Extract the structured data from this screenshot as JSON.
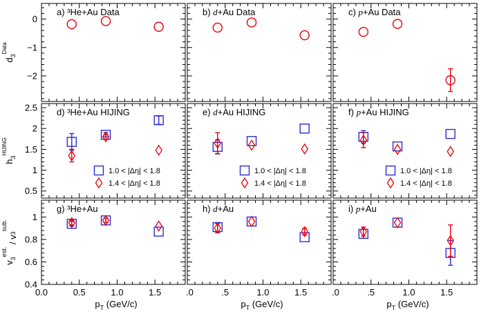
{
  "colors": {
    "series_red": "#e8000b",
    "series_blue": "#2b2bd6"
  },
  "chart_data": {
    "type": "scatter",
    "xlabel": "p_T (GeV/c)",
    "xlim": [
      0.0,
      1.9
    ],
    "x_ticks": [
      "0.0",
      "0.5",
      "1.0",
      "1.5"
    ],
    "x_ticks_right": [
      ".0",
      ".5",
      "1.0",
      "1.5"
    ],
    "rows": [
      {
        "ylabel": "d_3^Data",
        "ylim": [
          -2.9,
          0.55
        ],
        "y_ticks": [
          0,
          -1,
          -2
        ],
        "y_tick_labels": [
          "0",
          "−1",
          "−2"
        ],
        "panels": [
          {
            "label": "a) ³He+Au Data",
            "series": [
              {
                "name": "Data",
                "marker": "circle",
                "color": "#e8000b",
                "points": [
                  {
                    "x": 0.4,
                    "y": -0.18,
                    "err": 0.0
                  },
                  {
                    "x": 0.85,
                    "y": -0.07,
                    "err": 0.0
                  },
                  {
                    "x": 1.55,
                    "y": -0.27,
                    "err": 0.0
                  }
                ]
              }
            ]
          },
          {
            "label": "b) d+Au Data",
            "series": [
              {
                "name": "Data",
                "marker": "circle",
                "color": "#e8000b",
                "points": [
                  {
                    "x": 0.4,
                    "y": -0.3,
                    "err": 0.0
                  },
                  {
                    "x": 0.85,
                    "y": -0.12,
                    "err": 0.0
                  },
                  {
                    "x": 1.55,
                    "y": -0.57,
                    "err": 0.0
                  }
                ]
              }
            ]
          },
          {
            "label": "c) p+Au Data",
            "series": [
              {
                "name": "Data",
                "marker": "circle",
                "color": "#e8000b",
                "points": [
                  {
                    "x": 0.4,
                    "y": -0.45,
                    "err": 0.0
                  },
                  {
                    "x": 0.85,
                    "y": -0.17,
                    "err": 0.0
                  },
                  {
                    "x": 1.55,
                    "y": -2.15,
                    "err": 0.4
                  }
                ]
              }
            ]
          }
        ]
      },
      {
        "ylabel": "h_3^HIJING",
        "ylim": [
          0.33,
          2.6
        ],
        "y_ticks": [
          0.5,
          1.0,
          1.5,
          2.0,
          2.5
        ],
        "y_tick_labels": [
          "0.5",
          "1",
          "1.5",
          "2",
          "2.5"
        ],
        "legend": [
          {
            "marker": "square",
            "color": "#2b2bd6",
            "text": "1.0 < |Δη| < 1.8"
          },
          {
            "marker": "diamond",
            "color": "#e8000b",
            "text": "1.4 < |Δη| < 1.8"
          }
        ],
        "panels": [
          {
            "label": "d) ³He+Au HIJING",
            "series": [
              {
                "name": "1.0 < |Δη| < 1.8",
                "marker": "square",
                "color": "#2b2bd6",
                "points": [
                  {
                    "x": 0.4,
                    "y": 1.68,
                    "err": 0.2
                  },
                  {
                    "x": 0.85,
                    "y": 1.85,
                    "err": 0.05
                  },
                  {
                    "x": 1.55,
                    "y": 2.2,
                    "err": 0.1
                  }
                ]
              },
              {
                "name": "1.4 < |Δη| < 1.8",
                "marker": "diamond",
                "color": "#e8000b",
                "points": [
                  {
                    "x": 0.4,
                    "y": 1.35,
                    "err": 0.15
                  },
                  {
                    "x": 0.85,
                    "y": 1.8,
                    "err": 0.05
                  },
                  {
                    "x": 1.55,
                    "y": 1.48,
                    "err": 0.0
                  }
                ]
              }
            ]
          },
          {
            "label": "e) d+Au HIJING",
            "series": [
              {
                "name": "1.0 < |Δη| < 1.8",
                "marker": "square",
                "color": "#2b2bd6",
                "points": [
                  {
                    "x": 0.4,
                    "y": 1.56,
                    "err": 0.17
                  },
                  {
                    "x": 0.85,
                    "y": 1.7,
                    "err": 0.0
                  },
                  {
                    "x": 1.55,
                    "y": 2.0,
                    "err": 0.0
                  }
                ]
              },
              {
                "name": "1.4 < |Δη| < 1.8",
                "marker": "diamond",
                "color": "#e8000b",
                "points": [
                  {
                    "x": 0.4,
                    "y": 1.65,
                    "err": 0.25
                  },
                  {
                    "x": 0.85,
                    "y": 1.6,
                    "err": 0.0
                  },
                  {
                    "x": 1.55,
                    "y": 1.51,
                    "err": 0.0
                  }
                ]
              }
            ]
          },
          {
            "label": "f) p+Au HIJING",
            "series": [
              {
                "name": "1.0 < |Δη| < 1.8",
                "marker": "square",
                "color": "#2b2bd6",
                "points": [
                  {
                    "x": 0.4,
                    "y": 1.8,
                    "err": 0.15
                  },
                  {
                    "x": 0.85,
                    "y": 1.57,
                    "err": 0.0
                  },
                  {
                    "x": 1.55,
                    "y": 1.87,
                    "err": 0.0
                  }
                ]
              },
              {
                "name": "1.4 < |Δη| < 1.8",
                "marker": "diamond",
                "color": "#e8000b",
                "points": [
                  {
                    "x": 0.4,
                    "y": 1.72,
                    "err": 0.18
                  },
                  {
                    "x": 0.85,
                    "y": 1.5,
                    "err": 0.0
                  },
                  {
                    "x": 1.55,
                    "y": 1.45,
                    "err": 0.0
                  }
                ]
              }
            ]
          }
        ]
      },
      {
        "ylabel": "v_3^est. / v_3^sub.",
        "ylim": [
          0.4,
          1.15
        ],
        "y_ticks": [
          0.4,
          0.6,
          0.8,
          1.0
        ],
        "y_tick_labels": [
          "0.4",
          "0.6",
          "0.8",
          "1"
        ],
        "panels": [
          {
            "label": "g) ³He+Au",
            "series": [
              {
                "name": "1.0 < |Δη| < 1.8",
                "marker": "square",
                "color": "#2b2bd6",
                "points": [
                  {
                    "x": 0.4,
                    "y": 0.94,
                    "err": 0.02
                  },
                  {
                    "x": 0.85,
                    "y": 0.97,
                    "err": 0.02
                  },
                  {
                    "x": 1.55,
                    "y": 0.87,
                    "err": 0.0
                  }
                ]
              },
              {
                "name": "1.4 < |Δη| < 1.8",
                "marker": "diamond",
                "color": "#e8000b",
                "points": [
                  {
                    "x": 0.4,
                    "y": 0.95,
                    "err": 0.02
                  },
                  {
                    "x": 0.85,
                    "y": 0.97,
                    "err": 0.02
                  },
                  {
                    "x": 1.55,
                    "y": 0.92,
                    "err": 0.0
                  }
                ]
              }
            ]
          },
          {
            "label": "h) d+Au",
            "series": [
              {
                "name": "1.0 < |Δη| < 1.8",
                "marker": "square",
                "color": "#2b2bd6",
                "points": [
                  {
                    "x": 0.4,
                    "y": 0.91,
                    "err": 0.04
                  },
                  {
                    "x": 0.85,
                    "y": 0.96,
                    "err": 0.0
                  },
                  {
                    "x": 1.55,
                    "y": 0.82,
                    "err": 0.0
                  }
                ]
              },
              {
                "name": "1.4 < |Δη| < 1.8",
                "marker": "diamond",
                "color": "#e8000b",
                "points": [
                  {
                    "x": 0.4,
                    "y": 0.9,
                    "err": 0.04
                  },
                  {
                    "x": 0.85,
                    "y": 0.96,
                    "err": 0.0
                  },
                  {
                    "x": 1.55,
                    "y": 0.87,
                    "err": 0.03
                  }
                ]
              }
            ]
          },
          {
            "label": "i) p+Au",
            "series": [
              {
                "name": "1.0 < |Δη| < 1.8",
                "marker": "square",
                "color": "#2b2bd6",
                "points": [
                  {
                    "x": 0.4,
                    "y": 0.85,
                    "err": 0.04
                  },
                  {
                    "x": 0.85,
                    "y": 0.95,
                    "err": 0.0
                  },
                  {
                    "x": 1.55,
                    "y": 0.68,
                    "err": 0.11
                  }
                ]
              },
              {
                "name": "1.4 < |Δη| < 1.8",
                "marker": "diamond",
                "color": "#e8000b",
                "points": [
                  {
                    "x": 0.4,
                    "y": 0.87,
                    "err": 0.04
                  },
                  {
                    "x": 0.85,
                    "y": 0.95,
                    "err": 0.0
                  },
                  {
                    "x": 1.55,
                    "y": 0.79,
                    "err": 0.14
                  }
                ]
              }
            ]
          }
        ]
      }
    ]
  }
}
